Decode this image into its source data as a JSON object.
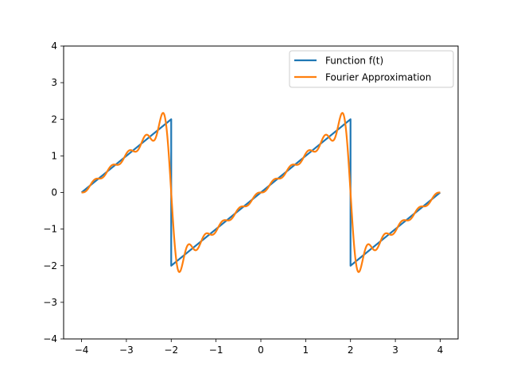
{
  "chart_data": {
    "type": "line",
    "title": "",
    "xlabel": "",
    "ylabel": "",
    "xlim": [
      -4.4,
      4.4
    ],
    "ylim": [
      -4,
      4
    ],
    "xticks": [
      -4,
      -3,
      -2,
      -1,
      0,
      1,
      2,
      3,
      4
    ],
    "yticks": [
      -4,
      -3,
      -2,
      -1,
      0,
      1,
      2,
      3,
      4
    ],
    "xtick_labels": [
      "−4",
      "−3",
      "−2",
      "−1",
      "0",
      "1",
      "2",
      "3",
      "4"
    ],
    "ytick_labels": [
      "−4",
      "−3",
      "−2",
      "−1",
      "0",
      "1",
      "2",
      "3",
      "4"
    ],
    "grid": false,
    "legend_position": "top-right",
    "series": [
      {
        "name": "Function f(t)",
        "color": "#1f77b4",
        "function": "sawtooth",
        "period": 4,
        "amplitude": 2,
        "x_range": [
          -4,
          4
        ]
      },
      {
        "name": "Fourier Approximation",
        "color": "#ff7f0e",
        "function": "fourier_sawtooth",
        "terms": 10,
        "period": 4,
        "amplitude": 2,
        "x_range": [
          -4,
          4
        ]
      }
    ]
  }
}
